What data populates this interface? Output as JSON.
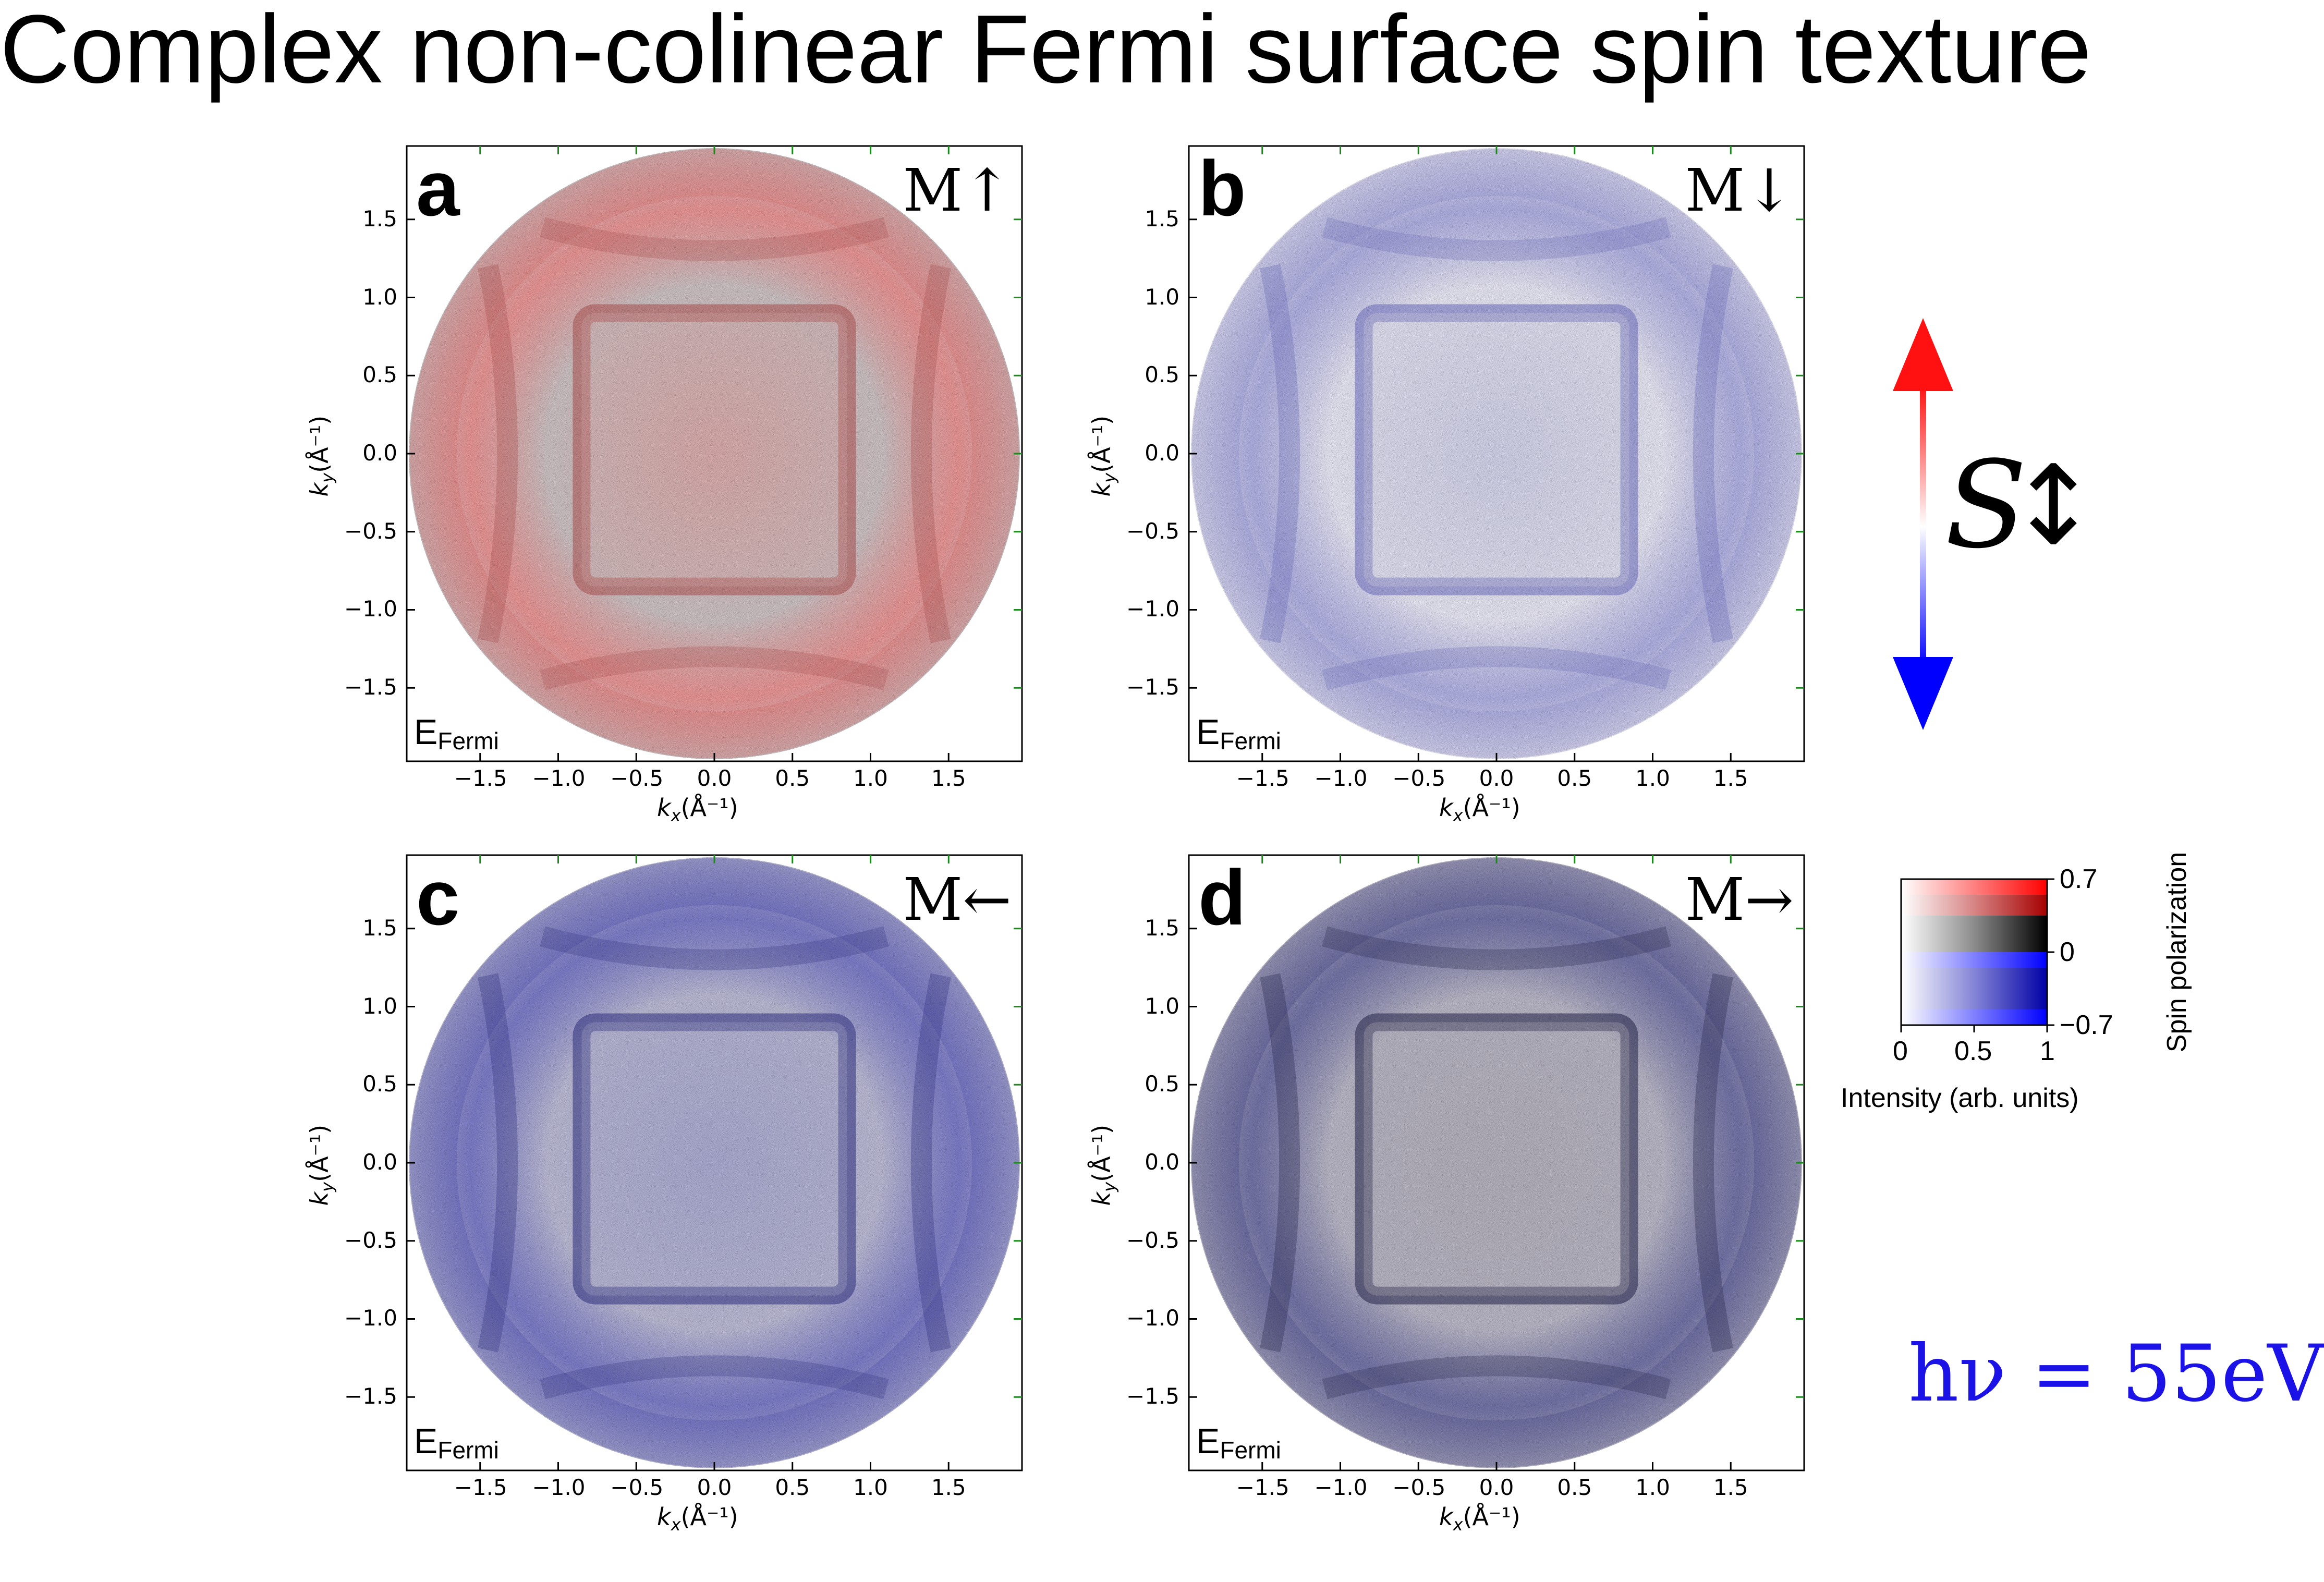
{
  "title": "Complex non-colinear Fermi surface spin texture",
  "panels": [
    {
      "letter": "a",
      "magnetization": "M↑",
      "energy_main": "E",
      "energy_sub": "Fermi",
      "tint": "red"
    },
    {
      "letter": "b",
      "magnetization": "M↓",
      "energy_main": "E",
      "energy_sub": "Fermi",
      "tint": "blue-light"
    },
    {
      "letter": "c",
      "magnetization": "M←",
      "energy_main": "E",
      "energy_sub": "Fermi",
      "tint": "blue"
    },
    {
      "letter": "d",
      "magnetization": "M→",
      "energy_main": "E",
      "energy_sub": "Fermi",
      "tint": "mixed"
    }
  ],
  "axes": {
    "xlabel_main": "k",
    "xlabel_sub": "x",
    "xlabel_unit": "(Å⁻¹)",
    "ylabel_main": "k",
    "ylabel_sub": "y",
    "ylabel_unit": "(Å⁻¹)",
    "x_ticks": [
      "−1.5",
      "−1.0",
      "−0.5",
      "0.0",
      "0.5",
      "1.0",
      "1.5"
    ],
    "y_ticks": [
      "1.5",
      "1.0",
      "0.5",
      "0.0",
      "−0.5",
      "−1.0",
      "−1.5"
    ],
    "xlim": [
      -1.97,
      1.97
    ],
    "ylim": [
      -1.97,
      1.97
    ]
  },
  "spin_axis": {
    "symbol": "S",
    "arrow": "↕"
  },
  "colorbar": {
    "top_value": "0.7",
    "mid_value": "0",
    "bottom_value": "−0.7",
    "x_ticks": [
      "0",
      "0.5",
      "1"
    ],
    "xlabel": "Intensity (arb. units)",
    "ylabel": "Spin polarization",
    "colors": {
      "positive": "#ff0000",
      "negative": "#0000ff",
      "neutral": "#ffffff",
      "dark": "#000000"
    }
  },
  "photon_energy": "hν = 55eV",
  "colors": {
    "accent_blue": "#1a12e6",
    "spin_up": "#ff1111",
    "spin_down": "#0000ff",
    "tick_green": "#1a8a1a"
  }
}
